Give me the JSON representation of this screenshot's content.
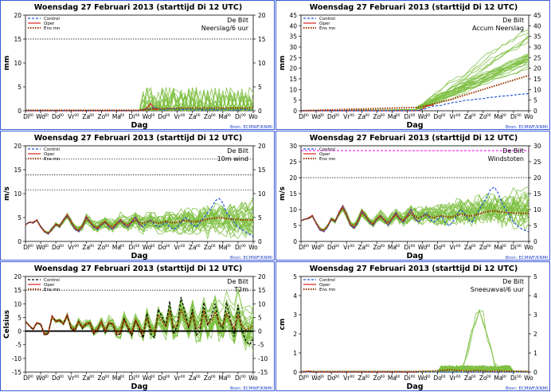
{
  "header": "Woensdag 27 Februari 2013 (starttijd Di 12 UTC)",
  "source": "Bron: ECMWF/KNMI",
  "location": "De Bilt",
  "day_labels": [
    "Di",
    "Wo",
    "Do",
    "Vr",
    "Za",
    "Zo",
    "Ma",
    "Di",
    "Wo",
    "Do",
    "Vr",
    "Za",
    "Zo",
    "Ma",
    "Di",
    "Wo"
  ],
  "xlabel": "Dag",
  "legend": {
    "control": "Control",
    "oper": "Oper",
    "ens": "Ens mn"
  },
  "colors": {
    "ensemble": "#7cbf3f",
    "control": "#2255dd",
    "control_t2m": "#000000",
    "oper": "#dd2222",
    "ens_mean": "#993300",
    "magenta": "#ff00ff"
  },
  "chart_data": [
    {
      "type": "line",
      "id": "precip",
      "title": "Woensdag 27 Februari 2013 (starttijd Di 12 UTC)",
      "subtitle": "Neerslag/6 uur",
      "ylabel": "mm",
      "ylim": [
        0,
        20
      ],
      "yticks": [
        0,
        5,
        10,
        15,
        20
      ],
      "y2lim": [
        0,
        20
      ],
      "y2ticks": [
        0,
        5,
        10,
        15,
        20
      ],
      "hlines": [
        15
      ],
      "control": [
        0,
        0,
        0,
        0,
        0,
        0,
        0,
        0,
        0,
        0,
        0,
        0,
        0,
        0,
        0,
        0,
        0,
        0,
        0,
        0,
        0,
        0,
        0,
        0,
        0,
        0,
        0,
        0,
        0,
        0,
        0,
        0.2,
        0.5,
        0.3,
        0.8,
        0.4,
        0.2,
        0.1,
        0.6,
        0.3,
        0.5,
        0.2,
        0.3,
        0.4,
        0.2,
        0.1,
        0.3,
        0.2,
        0.1,
        0.4,
        0.2,
        0.1,
        0.3,
        0.2,
        0.1,
        0.2,
        0.1,
        0.3,
        0.2,
        0.1,
        0.2
      ],
      "oper": [
        0,
        0,
        0,
        0,
        0,
        0,
        0,
        0,
        0,
        0,
        0,
        0,
        0,
        0,
        0,
        0,
        0,
        0,
        0,
        0,
        0,
        0,
        0,
        0,
        0,
        0,
        0,
        0,
        0,
        0,
        0,
        0.1,
        0.6,
        1.5,
        0.3,
        0.2
      ],
      "ens_mean": [
        0.1,
        0.1,
        0.1,
        0.1,
        0.1,
        0.1,
        0.1,
        0.1,
        0.1,
        0.1,
        0.1,
        0.1,
        0.1,
        0.1,
        0.1,
        0.1,
        0.1,
        0.1,
        0.1,
        0.1,
        0.1,
        0.1,
        0.1,
        0.1,
        0.1,
        0.1,
        0.1,
        0.1,
        0.1,
        0.1,
        0.1,
        0.2,
        0.3,
        0.4,
        0.4,
        0.5,
        0.4,
        0.5,
        0.4,
        0.5,
        0.5,
        0.6,
        0.5,
        0.6,
        0.5,
        0.6,
        0.5,
        0.6,
        0.5,
        0.6,
        0.5,
        0.6,
        0.5,
        0.6,
        0.5,
        0.6,
        0.5,
        0.6,
        0.5,
        0.6,
        0.6
      ]
    },
    {
      "type": "line",
      "id": "accum",
      "title": "Woensdag 27 Februari 2013 (starttijd Di 12 UTC)",
      "subtitle": "Accum Neerslag",
      "ylabel": "mm",
      "ylim": [
        0,
        45
      ],
      "yticks": [
        0,
        5,
        10,
        15,
        20,
        25,
        30,
        35,
        40,
        45
      ],
      "y2lim": [
        0,
        45
      ],
      "y2ticks": [
        0,
        5,
        10,
        15,
        20,
        25,
        30,
        35,
        40,
        45
      ],
      "hlines": [],
      "control": [
        0,
        0,
        0,
        0,
        0,
        0,
        0,
        0,
        0,
        0,
        0,
        0,
        0,
        0,
        0,
        0,
        0,
        0,
        0,
        0,
        0,
        0,
        0,
        0,
        0,
        0,
        0,
        0,
        0,
        0,
        0,
        0.2,
        0.7,
        1,
        1.8,
        2.2,
        2.4,
        2.5,
        3.1,
        3.4,
        3.9,
        4.1,
        4.4,
        4.8,
        5,
        5.1,
        5.4,
        5.6,
        5.7,
        6.1,
        6.3,
        6.4,
        6.7,
        6.9,
        7,
        7.2,
        7.3,
        7.6,
        7.8,
        7.9,
        8.1
      ],
      "oper": [
        0,
        0,
        0,
        0,
        0,
        0,
        0,
        0,
        0,
        0,
        0,
        0,
        0,
        0,
        0,
        0,
        0,
        0,
        0,
        0,
        0,
        0,
        0,
        0,
        0,
        0,
        0,
        0,
        0,
        0,
        0,
        0.1,
        0.7,
        2.2,
        2.5,
        2.7
      ],
      "ens_mean": [
        0,
        0.1,
        0.1,
        0.2,
        0.2,
        0.3,
        0.3,
        0.4,
        0.4,
        0.5,
        0.5,
        0.6,
        0.6,
        0.7,
        0.7,
        0.8,
        0.8,
        0.9,
        0.9,
        1,
        1,
        1.1,
        1.1,
        1.2,
        1.2,
        1.3,
        1.3,
        1.4,
        1.4,
        1.5,
        1.5,
        1.7,
        2,
        2.4,
        2.8,
        3.3,
        3.7,
        4.2,
        4.6,
        5.1,
        5.6,
        6.2,
        6.7,
        7.3,
        7.8,
        8.4,
        8.9,
        9.5,
        10,
        10.6,
        11.1,
        11.7,
        12.2,
        12.8,
        13.3,
        13.9,
        14.4,
        15,
        15.5,
        16.1,
        16.6
      ]
    },
    {
      "type": "line",
      "id": "wind",
      "title": "Woensdag 27 Februari 2013 (starttijd Di 12 UTC)",
      "subtitle": "10m wind",
      "ylabel": "m/s",
      "ylim": [
        0,
        20
      ],
      "yticks": [
        0,
        5,
        10,
        15,
        20
      ],
      "y2lim": [
        0,
        20
      ],
      "y2ticks": [
        0,
        5,
        10,
        15,
        20
      ],
      "hlines": [
        10.8,
        13.9,
        17.2
      ],
      "control": [
        3.5,
        4,
        3.8,
        4.5,
        3.2,
        2,
        1.5,
        2.5,
        3.5,
        3,
        4.5,
        5.5,
        4,
        2.5,
        2,
        3,
        5,
        4,
        3,
        2.5,
        3.5,
        4,
        3,
        2.5,
        3.5,
        4.5,
        3.5,
        3,
        4,
        5,
        3.5,
        3,
        4,
        4.5,
        3.5,
        3,
        3.5,
        4,
        3,
        2.5,
        3,
        4,
        5,
        4.5,
        3.5,
        3,
        4,
        5,
        6,
        7,
        8.5,
        9,
        8,
        6,
        5,
        4,
        3,
        2.5,
        2,
        1.5,
        1
      ],
      "oper": [
        3.5,
        4,
        4,
        4.5,
        3,
        2,
        1.6,
        2.6,
        3.6,
        3.2,
        4.6,
        5.6,
        4.2,
        2.6,
        2.1,
        3.2,
        5.2,
        4.1,
        3,
        2.6,
        3.6,
        4.2,
        3.1,
        2.6,
        3.7,
        4.6,
        3.6,
        3,
        4.2,
        5.1,
        3.6,
        3
      ],
      "ens_mean": [
        3.5,
        4,
        3.9,
        4.4,
        3.1,
        2.1,
        1.7,
        2.6,
        3.6,
        3.2,
        4.4,
        5.3,
        4.1,
        2.8,
        2.4,
        3.2,
        4.8,
        4,
        3.2,
        2.9,
        3.6,
        4,
        3.4,
        3.1,
        3.7,
        4.2,
        3.7,
        3.5,
        4,
        4.4,
        4,
        3.8,
        4.1,
        4.3,
        4,
        3.8,
        4,
        4.2,
        4,
        3.9,
        4,
        4.2,
        4.4,
        4.3,
        4.1,
        4.1,
        4.3,
        4.5,
        4.7,
        4.8,
        4.9,
        5,
        4.9,
        4.8,
        4.7,
        4.6,
        4.6,
        4.5,
        4.5,
        4.5,
        4.5
      ]
    },
    {
      "type": "line",
      "id": "gust",
      "title": "Woensdag 27 Februari 2013 (starttijd Di 12 UTC)",
      "subtitle": "Windstoten",
      "ylabel": "m/s",
      "ylim": [
        0,
        30
      ],
      "yticks": [
        0,
        5,
        10,
        15,
        20,
        25,
        30
      ],
      "y2lim": [
        0,
        30
      ],
      "y2ticks": [
        0,
        5,
        10,
        15,
        20,
        25,
        30
      ],
      "hlines": [
        20
      ],
      "magenta_line": 28.5,
      "control": [
        6.5,
        7,
        7.2,
        8,
        5.5,
        3.5,
        3,
        4.5,
        7,
        6.2,
        9,
        11,
        8.5,
        5,
        4,
        6,
        9.5,
        8,
        6,
        5,
        7,
        8,
        6.5,
        5,
        7,
        9,
        7,
        6,
        8,
        10,
        7,
        6,
        8,
        9,
        7,
        6,
        7,
        8,
        6,
        5,
        6,
        8,
        10,
        9,
        7,
        6,
        8,
        10,
        12,
        14,
        16.5,
        17,
        15,
        12,
        10,
        8,
        6,
        5,
        4,
        3.5,
        3
      ],
      "oper": [
        6.5,
        7,
        7.4,
        8.2,
        5.6,
        3.6,
        3.1,
        4.6,
        7.1,
        6.3,
        9.2,
        11.2,
        8.6,
        5.1,
        4.2,
        6.2,
        9.7,
        8.1,
        6.1,
        5.1,
        7.1,
        8.2,
        6.6,
        5.1,
        7.2,
        9.1,
        7.1,
        6.1,
        8.2,
        10.1,
        7.1,
        6.1
      ],
      "ens_mean": [
        6.5,
        7,
        7.2,
        7.9,
        5.8,
        4,
        3.5,
        4.8,
        7,
        6.3,
        8.7,
        10.5,
        8.3,
        5.5,
        4.8,
        6.3,
        9,
        7.9,
        6.4,
        5.6,
        7,
        7.8,
        6.7,
        5.9,
        7.1,
        8.3,
        7.2,
        6.7,
        7.8,
        8.8,
        7.8,
        7.4,
        7.9,
        8.3,
        7.8,
        7.4,
        7.8,
        8.1,
        7.8,
        7.6,
        7.8,
        8.1,
        8.5,
        8.3,
        8,
        8,
        8.3,
        8.6,
        9,
        9.3,
        9.5,
        9.6,
        9.4,
        9.2,
        9.1,
        9,
        8.9,
        8.8,
        8.8,
        8.8,
        8.8
      ]
    },
    {
      "type": "line",
      "id": "t2m",
      "title": "Woensdag 27 Februari 2013 (starttijd Di 12 UTC)",
      "subtitle": "T2m",
      "ylabel": "Celsius",
      "ylim": [
        -15,
        20
      ],
      "yticks": [
        -15,
        -10,
        -5,
        0,
        5,
        10,
        15,
        20
      ],
      "y2lim": [
        -15,
        20
      ],
      "y2ticks": [
        -15,
        -10,
        -5,
        0,
        5,
        10,
        15,
        20
      ],
      "hlines": [
        15
      ],
      "zero_line": true,
      "control": [
        3.5,
        2,
        0.5,
        3,
        2.5,
        -1.5,
        -1,
        5.5,
        3.5,
        4,
        2.5,
        6,
        1,
        0,
        3.5,
        1,
        2.5,
        3,
        -1,
        0.5,
        3.5,
        -0.5,
        3,
        2.5,
        -1.5,
        -1,
        4.5,
        1,
        -1.5,
        4,
        1,
        -2.5,
        6.5,
        -1,
        -2.5,
        8,
        5,
        2,
        11,
        -1,
        2,
        12.5,
        7,
        1,
        8,
        -1.5,
        0,
        10.5,
        2,
        5.5,
        10,
        2.5,
        1,
        10.5,
        4,
        -2,
        9.5,
        0.5,
        -3.5,
        -5,
        -3
      ],
      "oper": [
        3.5,
        2,
        0.6,
        3.1,
        2.6,
        -1.4,
        -0.9,
        5.6,
        3.6,
        4.1,
        2.6,
        6.1,
        1.1,
        0.1,
        3.6,
        1.1,
        2.6,
        3.1,
        -0.9,
        0.6,
        3.6,
        -0.4,
        3.1,
        2.6,
        -1.4,
        -0.9,
        4.6,
        1.1,
        -1.4,
        4.1,
        1.1,
        -2.4
      ],
      "ens_mean": [
        3.5,
        2,
        0.7,
        3,
        2.5,
        -1,
        -0.7,
        5.2,
        3.5,
        3.9,
        2.7,
        5.6,
        1.5,
        0.6,
        3.5,
        1.5,
        2.7,
        3,
        -0.2,
        1,
        3.4,
        0.3,
        3,
        2.6,
        -0.5,
        0,
        4.1,
        1.5,
        -0.3,
        3.8,
        1.5,
        -0.8,
        5,
        0.8,
        -0.6,
        6,
        3.6,
        1.5,
        7.5,
        1.4,
        2,
        8,
        4.5,
        1.5,
        6,
        1,
        1.5,
        7,
        2.5,
        4,
        7,
        3,
        2,
        6.5,
        3.5,
        1,
        6,
        2,
        0.5,
        1,
        2
      ]
    },
    {
      "type": "line",
      "id": "snow",
      "title": "Woensdag 27 Februari 2013 (starttijd Di 12 UTC)",
      "subtitle": "Sneeuwval/6 uur",
      "ylabel": "cm",
      "ylim": [
        0,
        5
      ],
      "yticks": [
        0,
        1,
        2,
        3,
        4,
        5
      ],
      "y2lim": [
        0,
        5
      ],
      "y2ticks": [
        0,
        1,
        2,
        3,
        4,
        5
      ],
      "hlines": [],
      "control": [
        0,
        0,
        0,
        0,
        0,
        0,
        0,
        0,
        0,
        0,
        0,
        0,
        0,
        0,
        0,
        0,
        0,
        0,
        0,
        0,
        0,
        0,
        0,
        0,
        0,
        0,
        0,
        0,
        0,
        0,
        0,
        0,
        0,
        0,
        0,
        0,
        0,
        0,
        0,
        0,
        0,
        0,
        0,
        0,
        0,
        0,
        0,
        0,
        0,
        0,
        0,
        0,
        0,
        0,
        0,
        0,
        0,
        0,
        0,
        0,
        0
      ],
      "oper": [
        0,
        0,
        0.05,
        0,
        0,
        0,
        0,
        0,
        0,
        0,
        0,
        0,
        0,
        0,
        0,
        0,
        0,
        0,
        0,
        0,
        0,
        0,
        0,
        0,
        0,
        0,
        0,
        0,
        0,
        0,
        0,
        0
      ],
      "ens_mean": [
        0.02,
        0.03,
        0.04,
        0.03,
        0.02,
        0.02,
        0.02,
        0.02,
        0.02,
        0.02,
        0.02,
        0.02,
        0.02,
        0.02,
        0.02,
        0.02,
        0.02,
        0.02,
        0.02,
        0.02,
        0.02,
        0.02,
        0.02,
        0.02,
        0.02,
        0.02,
        0.02,
        0.02,
        0.02,
        0.02,
        0.02,
        0.03,
        0.04,
        0.05,
        0.05,
        0.06,
        0.07,
        0.08,
        0.1,
        0.12,
        0.1,
        0.08,
        0.07,
        0.06,
        0.05,
        0.06,
        0.07,
        0.08,
        0.06,
        0.05,
        0.04,
        0.05,
        0.06,
        0.05,
        0.04,
        0.04,
        0.05,
        0.04,
        0.04,
        0.03,
        0.03
      ]
    }
  ]
}
